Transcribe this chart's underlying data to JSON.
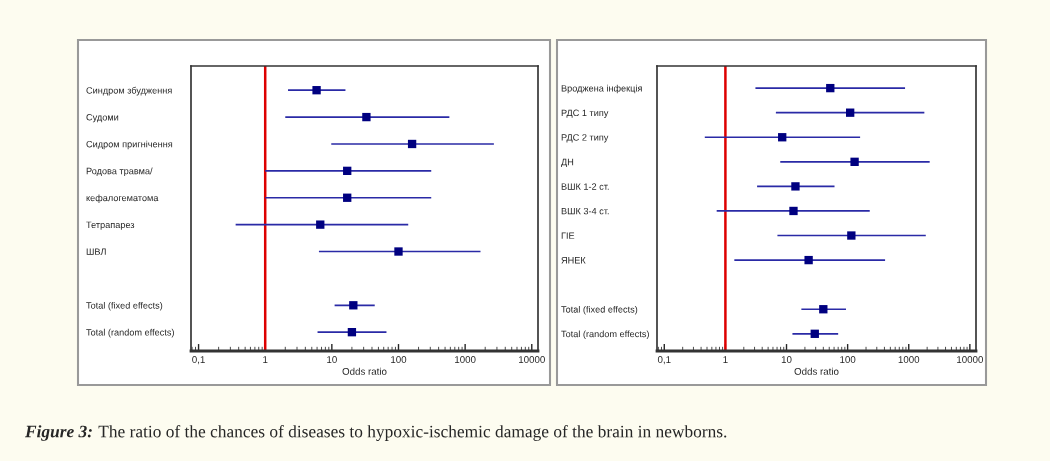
{
  "chart_data": [
    {
      "type": "scatter",
      "orientation": "horizontal",
      "xlabel": "Odds ratio",
      "log": "x",
      "grid": false,
      "marker": "square",
      "legend": false,
      "categories": [
        "Синдром збудження",
        "Судоми",
        "Сидром пригнічення",
        "Родова травма/",
        "кефалогематома",
        "Тетрапарез",
        "ШВЛ",
        null,
        "Total (fixed effects)",
        "Total (random effects)"
      ],
      "series": [
        {
          "color": "#000080",
          "values": [
            5.9,
            33,
            160,
            17,
            17,
            6.7,
            100,
            null,
            21,
            20
          ],
          "errors": [
            [
              2.2,
              16
            ],
            [
              2.0,
              580
            ],
            [
              9.8,
              2700
            ],
            [
              1,
              310
            ],
            [
              1,
              310
            ],
            [
              0.36,
              140
            ],
            [
              6.4,
              1700
            ],
            null,
            [
              11,
              44
            ],
            [
              6.1,
              66
            ]
          ]
        }
      ],
      "xlim": [
        0.077,
        12400
      ],
      "xticks": [
        {
          "value": 0.1,
          "label": "0,1"
        },
        1,
        10,
        100,
        1000,
        10000
      ],
      "ref_lines": [
        {
          "axis": "x",
          "value": 1,
          "color": "#dd0000"
        }
      ]
    },
    {
      "type": "scatter",
      "orientation": "horizontal",
      "xlabel": "Odds ratio",
      "log": "x",
      "grid": false,
      "marker": "square",
      "legend": false,
      "categories": [
        "Вроджена інфекція",
        "РДС 1 типу",
        "РДС 2 типу",
        "ДН",
        "ВШК 1-2 ст.",
        "ВШК 3-4 ст.",
        "ГІЕ",
        "ЯНЕК",
        null,
        "Total (fixed effects)",
        "Total (random effects)"
      ],
      "series": [
        {
          "color": "#000080",
          "values": [
            52,
            110,
            8.5,
            130,
            14,
            13,
            115,
            23,
            null,
            40,
            29
          ],
          "errors": [
            [
              3.1,
              870
            ],
            [
              6.7,
              1800
            ],
            [
              0.46,
              160
            ],
            [
              7.9,
              2200
            ],
            [
              3.3,
              61
            ],
            [
              0.72,
              230
            ],
            [
              7.1,
              1900
            ],
            [
              1.4,
              410
            ],
            null,
            [
              17.5,
              94
            ],
            [
              12.5,
              70
            ]
          ]
        }
      ],
      "xlim": [
        0.076,
        12600
      ],
      "xticks": [
        {
          "value": 0.1,
          "label": "0,1"
        },
        1,
        10,
        100,
        1000,
        10000
      ],
      "ref_lines": [
        {
          "axis": "x",
          "value": 1,
          "color": "#dd0000"
        }
      ],
      "annotations": [
        "Figure 3:",
        "The ratio of the chances of diseases to hypoxic-ischemic damage of the brain in newborns."
      ]
    }
  ]
}
